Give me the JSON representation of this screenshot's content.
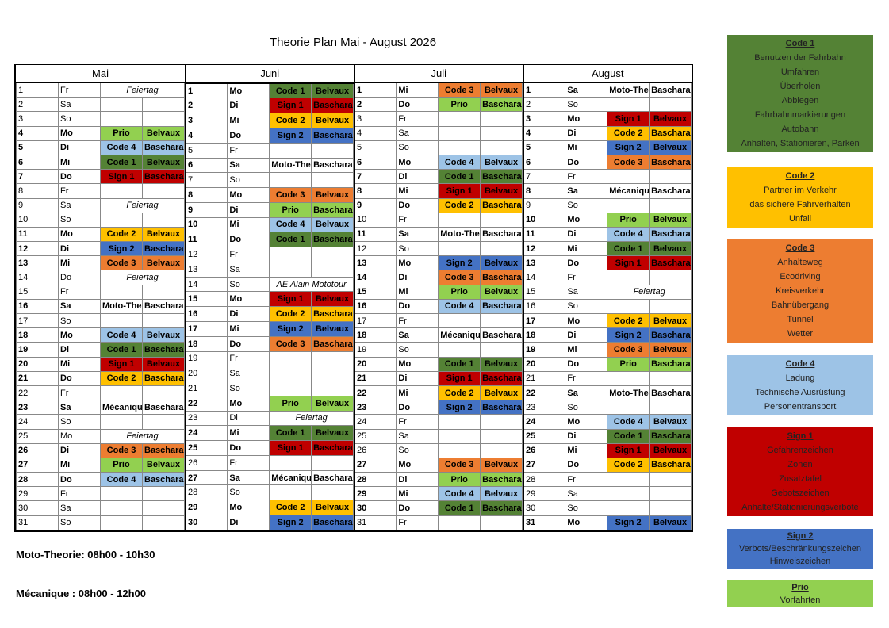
{
  "title": "Theorie Plan Mai - August 2026",
  "months": [
    {
      "name": "Mai",
      "rows": [
        [
          1,
          "Fr",
          "Feiertag"
        ],
        [
          2,
          "Sa"
        ],
        [
          3,
          "So"
        ],
        [
          4,
          "Mo",
          "Prio",
          "Belvaux"
        ],
        [
          5,
          "Di",
          "Code 4",
          "Bascharage"
        ],
        [
          6,
          "Mi",
          "Code 1",
          "Belvaux"
        ],
        [
          7,
          "Do",
          "Sign 1",
          "Bascharage"
        ],
        [
          8,
          "Fr"
        ],
        [
          9,
          "Sa",
          "Feiertag"
        ],
        [
          10,
          "So"
        ],
        [
          11,
          "Mo",
          "Code 2",
          "Belvaux"
        ],
        [
          12,
          "Di",
          "Sign 2",
          "Bascharage"
        ],
        [
          13,
          "Mi",
          "Code 3",
          "Belvaux"
        ],
        [
          14,
          "Do",
          "Feiertag"
        ],
        [
          15,
          "Fr"
        ],
        [
          16,
          "Sa",
          "Moto-Theorie",
          "Bascharage"
        ],
        [
          17,
          "So"
        ],
        [
          18,
          "Mo",
          "Code 4",
          "Belvaux"
        ],
        [
          19,
          "Di",
          "Code 1",
          "Bascharage"
        ],
        [
          20,
          "Mi",
          "Sign 1",
          "Belvaux"
        ],
        [
          21,
          "Do",
          "Code 2",
          "Bascharage"
        ],
        [
          22,
          "Fr"
        ],
        [
          23,
          "Sa",
          "Mécanique",
          "Bascharage"
        ],
        [
          24,
          "So"
        ],
        [
          25,
          "Mo",
          "Feiertag"
        ],
        [
          26,
          "Di",
          "Code 3",
          "Bascharage"
        ],
        [
          27,
          "Mi",
          "Prio",
          "Belvaux"
        ],
        [
          28,
          "Do",
          "Code 4",
          "Bascharage"
        ],
        [
          29,
          "Fr"
        ],
        [
          30,
          "Sa"
        ],
        [
          31,
          "So"
        ]
      ]
    },
    {
      "name": "Juni",
      "rows": [
        [
          1,
          "Mo",
          "Code 1",
          "Belvaux"
        ],
        [
          2,
          "Di",
          "Sign 1",
          "Bascharage"
        ],
        [
          3,
          "Mi",
          "Code 2",
          "Belvaux"
        ],
        [
          4,
          "Do",
          "Sign 2",
          "Bascharage"
        ],
        [
          5,
          "Fr"
        ],
        [
          6,
          "Sa",
          "Moto-Theorie",
          "Bascharage"
        ],
        [
          7,
          "So"
        ],
        [
          8,
          "Mo",
          "Code 3",
          "Belvaux"
        ],
        [
          9,
          "Di",
          "Prio",
          "Bascharage"
        ],
        [
          10,
          "Mi",
          "Code 4",
          "Belvaux"
        ],
        [
          11,
          "Do",
          "Code 1",
          "Bascharage"
        ],
        [
          12,
          "Fr"
        ],
        [
          13,
          "Sa"
        ],
        [
          14,
          "So",
          "AE Alain Mototour"
        ],
        [
          15,
          "Mo",
          "Sign 1",
          "Belvaux"
        ],
        [
          16,
          "Di",
          "Code 2",
          "Bascharage"
        ],
        [
          17,
          "Mi",
          "Sign 2",
          "Belvaux"
        ],
        [
          18,
          "Do",
          "Code 3",
          "Bascharage"
        ],
        [
          19,
          "Fr"
        ],
        [
          20,
          "Sa"
        ],
        [
          21,
          "So"
        ],
        [
          22,
          "Mo",
          "Prio",
          "Belvaux"
        ],
        [
          23,
          "Di",
          "Feiertag"
        ],
        [
          24,
          "Mi",
          "Code 1",
          "Belvaux"
        ],
        [
          25,
          "Do",
          "Sign 1",
          "Bascharage"
        ],
        [
          26,
          "Fr"
        ],
        [
          27,
          "Sa",
          "Mécanique",
          "Bascharage"
        ],
        [
          28,
          "So"
        ],
        [
          29,
          "Mo",
          "Code 2",
          "Belvaux"
        ],
        [
          30,
          "Di",
          "Sign 2",
          "Bascharage"
        ]
      ]
    },
    {
      "name": "Juli",
      "rows": [
        [
          1,
          "Mi",
          "Code 3",
          "Belvaux"
        ],
        [
          2,
          "Do",
          "Prio",
          "Bascharage"
        ],
        [
          3,
          "Fr"
        ],
        [
          4,
          "Sa"
        ],
        [
          5,
          "So"
        ],
        [
          6,
          "Mo",
          "Code 4",
          "Belvaux"
        ],
        [
          7,
          "Di",
          "Code 1",
          "Bascharage"
        ],
        [
          8,
          "Mi",
          "Sign 1",
          "Belvaux"
        ],
        [
          9,
          "Do",
          "Code 2",
          "Bascharage"
        ],
        [
          10,
          "Fr"
        ],
        [
          11,
          "Sa",
          "Moto-Theorie",
          "Bascharage"
        ],
        [
          12,
          "So"
        ],
        [
          13,
          "Mo",
          "Sign 2",
          "Belvaux"
        ],
        [
          14,
          "Di",
          "Code 3",
          "Bascharage"
        ],
        [
          15,
          "Mi",
          "Prio",
          "Belvaux"
        ],
        [
          16,
          "Do",
          "Code 4",
          "Bascharage"
        ],
        [
          17,
          "Fr"
        ],
        [
          18,
          "Sa",
          "Mécanique",
          "Bascharage"
        ],
        [
          19,
          "So"
        ],
        [
          20,
          "Mo",
          "Code 1",
          "Belvaux"
        ],
        [
          21,
          "Di",
          "Sign 1",
          "Bascharage"
        ],
        [
          22,
          "Mi",
          "Code 2",
          "Belvaux"
        ],
        [
          23,
          "Do",
          "Sign 2",
          "Bascharage"
        ],
        [
          24,
          "Fr"
        ],
        [
          25,
          "Sa"
        ],
        [
          26,
          "So"
        ],
        [
          27,
          "Mo",
          "Code 3",
          "Belvaux"
        ],
        [
          28,
          "Di",
          "Prio",
          "Bascharage"
        ],
        [
          29,
          "Mi",
          "Code 4",
          "Belvaux"
        ],
        [
          30,
          "Do",
          "Code 1",
          "Bascharage"
        ],
        [
          31,
          "Fr"
        ]
      ]
    },
    {
      "name": "August",
      "rows": [
        [
          1,
          "Sa",
          "Moto-Theorie",
          "Bascharage"
        ],
        [
          2,
          "So"
        ],
        [
          3,
          "Mo",
          "Sign 1",
          "Belvaux"
        ],
        [
          4,
          "Di",
          "Code 2",
          "Bascharage"
        ],
        [
          5,
          "Mi",
          "Sign 2",
          "Belvaux"
        ],
        [
          6,
          "Do",
          "Code 3",
          "Bascharage"
        ],
        [
          7,
          "Fr"
        ],
        [
          8,
          "Sa",
          "Mécanique",
          "Bascharage"
        ],
        [
          9,
          "So"
        ],
        [
          10,
          "Mo",
          "Prio",
          "Belvaux"
        ],
        [
          11,
          "Di",
          "Code 4",
          "Bascharage"
        ],
        [
          12,
          "Mi",
          "Code 1",
          "Belvaux"
        ],
        [
          13,
          "Do",
          "Sign 1",
          "Bascharage"
        ],
        [
          14,
          "Fr"
        ],
        [
          15,
          "Sa",
          "Feiertag"
        ],
        [
          16,
          "So"
        ],
        [
          17,
          "Mo",
          "Code 2",
          "Belvaux"
        ],
        [
          18,
          "Di",
          "Sign 2",
          "Bascharage"
        ],
        [
          19,
          "Mi",
          "Code 3",
          "Belvaux"
        ],
        [
          20,
          "Do",
          "Prio",
          "Bascharage"
        ],
        [
          21,
          "Fr"
        ],
        [
          22,
          "Sa",
          "Moto-Theorie",
          "Bascharage"
        ],
        [
          23,
          "So"
        ],
        [
          24,
          "Mo",
          "Code 4",
          "Belvaux"
        ],
        [
          25,
          "Di",
          "Code 1",
          "Bascharage"
        ],
        [
          26,
          "Mi",
          "Sign 1",
          "Belvaux"
        ],
        [
          27,
          "Do",
          "Code 2",
          "Bascharage"
        ],
        [
          28,
          "Fr"
        ],
        [
          29,
          "Sa"
        ],
        [
          30,
          "So"
        ],
        [
          31,
          "Mo",
          "Sign 2",
          "Belvaux"
        ]
      ]
    }
  ],
  "notes": [
    "Moto-Theorie: 08h00 - 10h30",
    "Mécanique : 08h00 - 12h00"
  ],
  "legend": [
    {
      "title": "Code 1",
      "color": "#548235",
      "items": [
        "Benutzen der Fahrbahn",
        "Umfahren",
        "Überholen",
        "Abbiegen",
        "Fahrbahnmarkierungen",
        "Autobahn",
        "Anhalten, Stationieren, Parken"
      ]
    },
    {
      "title": "Code 2",
      "color": "#ffc000",
      "items": [
        "Partner im Verkehr",
        "das sichere Fahrverhalten",
        "Unfall"
      ]
    },
    {
      "title": "Code 3",
      "color": "#ed7d31",
      "items": [
        "Anhalteweg",
        "Ecodriving",
        "Kreisverkehr",
        "Bahnübergang",
        "Tunnel",
        "Wetter"
      ]
    },
    {
      "title": "Code 4",
      "color": "#9dc3e6",
      "items": [
        "Ladung",
        "Technische Ausrüstung",
        "Personentransport"
      ]
    },
    {
      "title": "Sign 1",
      "color": "#c00000",
      "items": [
        "Gefahrenzeichen",
        "Zonen",
        "Zusatztafel",
        "Gebotszeichen",
        "Anhalte/Stationierungsverbote"
      ]
    },
    {
      "title": "Sign 2",
      "color": "#4472c4",
      "items": [
        "Verbots/Beschränkungszeichen",
        "Hinweiszeichen"
      ]
    },
    {
      "title": "Prio",
      "color": "#92d050",
      "items": [
        "Vorfahrten"
      ]
    }
  ]
}
